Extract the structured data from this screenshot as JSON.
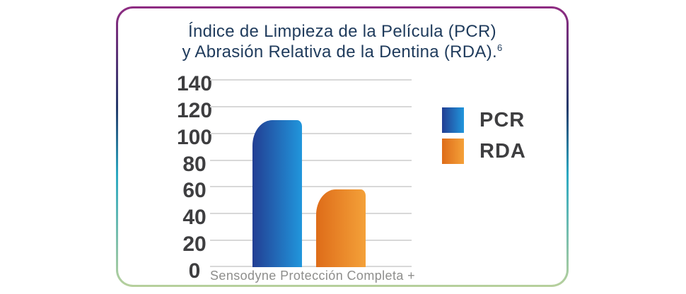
{
  "title": {
    "line1": "Índice de Limpieza de la Película (PCR)",
    "line2": "y Abrasión Relativa de la Dentina (RDA).",
    "superscript": "6"
  },
  "chart_data": {
    "type": "bar",
    "title": "Índice de Limpieza de la Película (PCR) y Abrasión Relativa de la Dentina (RDA).",
    "footnote_marker": "6",
    "categories": [
      "Sensodyne Protección Completa +"
    ],
    "series": [
      {
        "name": "PCR",
        "values": [
          110
        ],
        "color_start": "#223E93",
        "color_end": "#2196DC"
      },
      {
        "name": "RDA",
        "values": [
          58
        ],
        "color_start": "#DE6C19",
        "color_end": "#F4A139"
      }
    ],
    "xlabel": "Sensodyne Protección Completa +",
    "ylabel": "",
    "ylim": [
      0,
      140
    ],
    "yticks": [
      0,
      20,
      40,
      60,
      80,
      100,
      120,
      140
    ],
    "grid": true,
    "legend_position": "right",
    "legend": [
      "PCR",
      "RDA"
    ]
  },
  "colors": {
    "title_text": "#1F3B5C",
    "tick_text": "#3E3E40",
    "xlabel_text": "#8E8E8C",
    "gridline": "#D8D8D8",
    "card_background": "#FFFFFF",
    "border_gradient": [
      "#8F2C82",
      "#24396A",
      "#2BA9C2",
      "#B7D09C"
    ]
  }
}
